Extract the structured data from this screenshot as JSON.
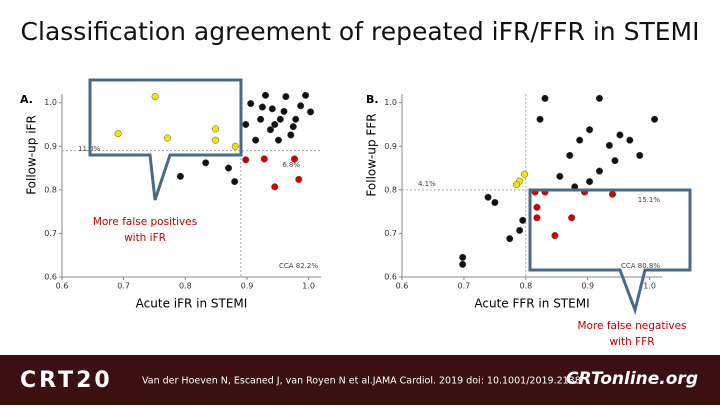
{
  "title": "Classification agreement of repeated iFR/FFR in STEMI",
  "callouts": [
    {
      "lines": [
        "More false positives",
        "with iFR"
      ],
      "color": "#c00000"
    },
    {
      "lines": [
        "More false negatives",
        "with FFR"
      ],
      "color": "#c00000"
    }
  ],
  "footer": {
    "logo": "CRT20",
    "reference": "Van der Hoeven N, Escaned J, van Royen N et al.JAMA Cardiol. 2019 doi: 10.1001/2019.2138",
    "site": "CRTonline.org"
  },
  "chart_data": [
    {
      "type": "scatter",
      "panel": "A.",
      "x_label": "Acute iFR in STEMI",
      "y_label": "Follow-up iFR",
      "xlim": [
        0.6,
        1.02
      ],
      "ylim": [
        0.6,
        1.02
      ],
      "xticks": [
        0.6,
        0.7,
        0.8,
        0.9,
        {
          "value": 1,
          "label": "1.0"
        }
      ],
      "yticks": [
        0.6,
        0.7,
        0.8,
        0.9,
        {
          "value": 1,
          "label": "1.0"
        }
      ],
      "cutoff": 0.89,
      "annotations": [
        "11.0%",
        "6.8%",
        "CCA 82.2%"
      ],
      "series": [
        {
          "color": "#111111",
          "x": [
            0.93,
            0.963,
            0.906,
            0.941,
            0.987,
            0.922,
            0.954,
            0.979,
            1.003,
            0.898,
            0.938,
            0.971,
            0.914,
            0.951,
            0.833,
            0.792,
            0.87,
            0.88,
            0.995,
            0.96,
            0.975,
            0.925,
            0.945
          ],
          "values": [
            1.017,
            1.014,
            0.998,
            0.986,
            0.993,
            0.962,
            0.962,
            0.962,
            0.979,
            0.95,
            0.938,
            0.926,
            0.914,
            0.914,
            0.862,
            0.831,
            0.85,
            0.819,
            1.017,
            0.98,
            0.945,
            0.99,
            0.95
          ]
        },
        {
          "color": "#f2e600",
          "x": [
            0.751,
            0.691,
            0.771,
            0.849,
            0.849,
            0.881
          ],
          "values": [
            1.014,
            0.929,
            0.919,
            0.94,
            0.914,
            0.9
          ]
        },
        {
          "color": "#d40000",
          "x": [
            0.928,
            0.977,
            0.945,
            0.984,
            0.898
          ],
          "values": [
            0.871,
            0.871,
            0.807,
            0.824,
            0.869
          ]
        }
      ]
    },
    {
      "type": "scatter",
      "panel": "B.",
      "x_label": "Acute FFR in STEMI",
      "y_label": "Follow-up FFR",
      "xlim": [
        0.6,
        1.02
      ],
      "ylim": [
        0.6,
        1.02
      ],
      "xticks": [
        0.6,
        0.7,
        0.8,
        0.9,
        {
          "value": 1,
          "label": "1.0"
        }
      ],
      "yticks": [
        0.6,
        0.7,
        0.8,
        0.9,
        {
          "value": 1,
          "label": "1.0"
        }
      ],
      "cutoff": 0.8,
      "annotations": [
        "4.1%",
        "15.1%",
        "CCA 80.8%"
      ],
      "series": [
        {
          "color": "#111111",
          "x": [
            0.698,
            0.698,
            0.739,
            0.75,
            0.774,
            0.79,
            0.795,
            0.823,
            0.831,
            0.855,
            0.871,
            0.887,
            0.903,
            0.919,
            0.935,
            0.952,
            0.968,
            0.984,
            1.008,
            0.919,
            0.944,
            0.879,
            0.903
          ],
          "values": [
            0.645,
            0.629,
            0.783,
            0.771,
            0.688,
            0.707,
            0.73,
            0.962,
            1.01,
            0.831,
            0.879,
            0.914,
            0.938,
            1.01,
            0.902,
            0.926,
            0.914,
            0.879,
            0.962,
            0.843,
            0.867,
            0.807,
            0.819
          ]
        },
        {
          "color": "#f2e600",
          "x": [
            0.798,
            0.79,
            0.785
          ],
          "values": [
            0.836,
            0.82,
            0.812
          ]
        },
        {
          "color": "#d40000",
          "x": [
            0.815,
            0.818,
            0.818,
            0.847,
            0.874,
            0.895,
            0.94,
            0.831
          ],
          "values": [
            0.795,
            0.76,
            0.736,
            0.695,
            0.736,
            0.795,
            0.79,
            0.795
          ]
        }
      ]
    }
  ]
}
